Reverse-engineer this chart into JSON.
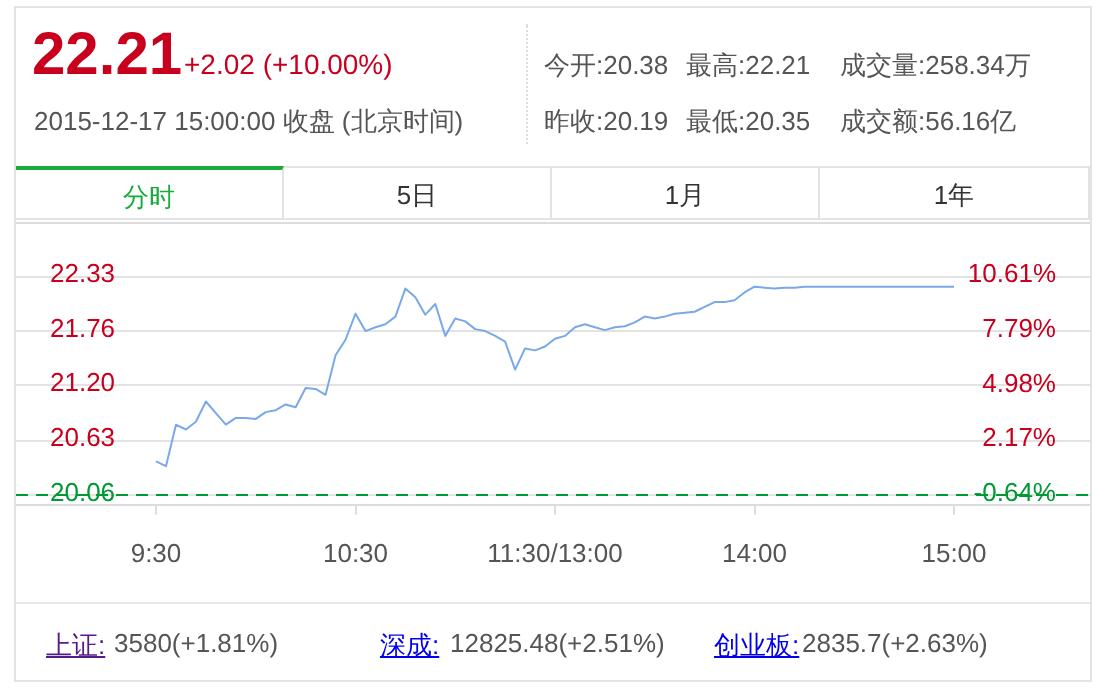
{
  "chart_data": {
    "type": "line",
    "title": "22.21",
    "subtitle": "+2.02 (+10.00%)",
    "annotations": [
      "2015-12-17 15:00:00 收盘 (北京时间)",
      "今开:20.38",
      "最高:22.21",
      "成交量:258.34万",
      "昨收:20.19",
      "最低:20.35",
      "成交额:56.16亿",
      "分时",
      "5日",
      "1月",
      "1年",
      "上证:",
      "3580(+1.81%)",
      "深成:",
      "12825.48(+2.51%)",
      "创业板:",
      "2835.7(+2.63%)"
    ],
    "categories": [
      "9:30",
      null,
      null,
      null,
      null,
      null,
      null,
      null,
      null,
      null,
      null,
      null,
      null,
      null,
      null,
      null,
      null,
      null,
      null,
      null,
      "10:30",
      null,
      null,
      null,
      null,
      null,
      null,
      null,
      null,
      null,
      null,
      null,
      null,
      null,
      null,
      null,
      null,
      null,
      null,
      null,
      "11:30/13:00",
      null,
      null,
      null,
      null,
      null,
      null,
      null,
      null,
      null,
      null,
      null,
      null,
      null,
      null,
      null,
      null,
      null,
      null,
      null,
      "14:00",
      null,
      null,
      null,
      null,
      null,
      null,
      null,
      null,
      null,
      null,
      null,
      null,
      null,
      null,
      null,
      null,
      null,
      null,
      null,
      "15:00"
    ],
    "ylim": [
      19.95,
      22.88
    ],
    "yticks": [
      20.06,
      20.63,
      {
        "value": 21.2,
        "label": "21.20"
      },
      21.76,
      22.33
    ],
    "y2lim": [
      -1.19,
      13.32
    ],
    "y2ticks": [
      {
        "value": -0.64,
        "label": "-0.64%"
      },
      {
        "value": 2.17,
        "label": "2.17%"
      },
      {
        "value": 4.98,
        "label": "4.98%"
      },
      {
        "value": 7.79,
        "label": "7.79%"
      },
      {
        "value": 10.61,
        "label": "10.61%"
      }
    ],
    "grid": "y",
    "ref_lines": [
      {
        "axis": "y",
        "value": 20.06,
        "color": "#009933",
        "line_style": "dashed"
      }
    ],
    "series": [
      {
        "color": "#7aa9e8",
        "values": [
          20.4,
          20.35,
          20.78,
          20.73,
          20.81,
          21.02,
          20.9,
          20.78,
          20.85,
          20.85,
          20.84,
          20.91,
          20.93,
          20.99,
          20.96,
          21.16,
          21.15,
          21.09,
          21.5,
          21.66,
          21.93,
          21.75,
          21.79,
          21.82,
          21.9,
          22.19,
          22.1,
          21.92,
          22.03,
          21.7,
          21.88,
          21.85,
          21.77,
          21.75,
          21.7,
          21.64,
          21.35,
          21.57,
          21.55,
          21.59,
          21.67,
          21.7,
          21.79,
          21.82,
          21.79,
          21.76,
          21.79,
          21.8,
          21.84,
          21.9,
          21.88,
          21.9,
          21.93,
          21.94,
          21.95,
          22,
          22.05,
          22.05,
          22.07,
          22.15,
          22.21,
          22.2,
          22.19,
          22.2,
          22.2,
          22.21,
          22.21,
          22.21,
          22.21,
          22.21,
          22.21,
          22.21,
          22.21,
          22.21,
          22.21,
          22.21,
          22.21,
          22.21,
          22.21,
          22.21,
          22.21
        ]
      }
    ]
  }
}
